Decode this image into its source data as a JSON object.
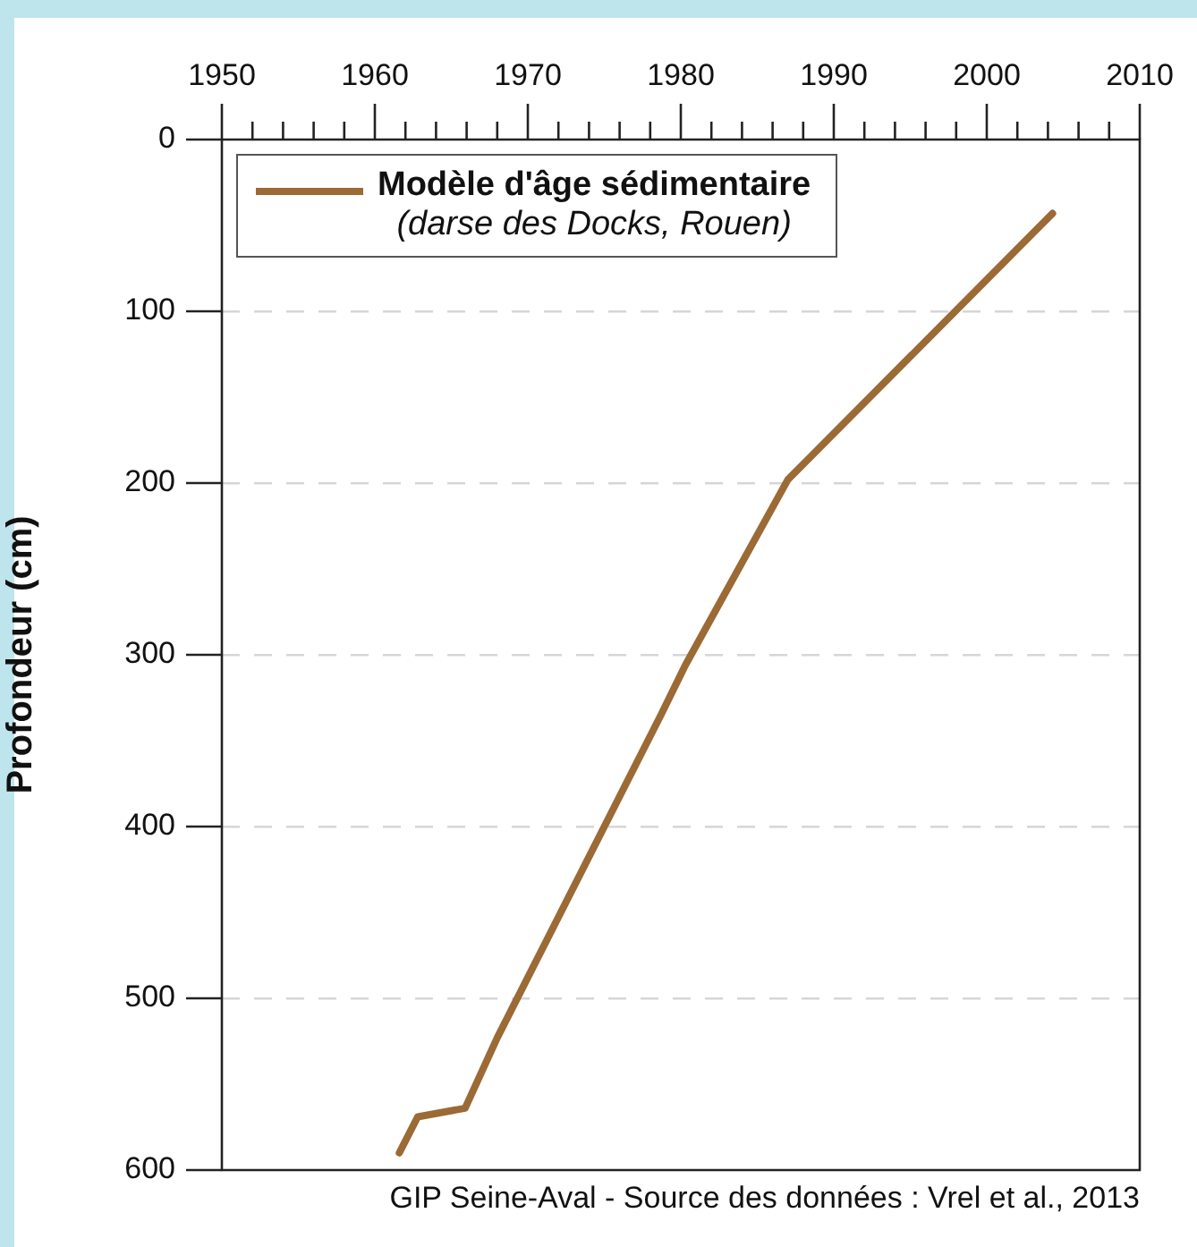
{
  "chart_data": {
    "type": "line",
    "ylabel": "Profondeur (cm)",
    "annotations": [
      "GIP Seine-Aval - Source des données : Vrel et al., 2013"
    ],
    "series": [
      {
        "name": "Modèle d'âge sédimentaire\n(darse des Docks, Rouen)",
        "color": "#9b6a35",
        "x": [
          1961.6,
          1962.8,
          1965.9,
          1968.0,
          1978.7,
          1980.3,
          1987.0,
          2004.3
        ],
        "values": [
          590,
          569,
          564,
          523,
          335,
          306,
          198,
          43
        ]
      }
    ],
    "xlim": [
      1950,
      2010
    ],
    "xticks": [
      1950,
      {
        "value": 1952,
        "label": null
      },
      {
        "value": 1954,
        "label": null
      },
      {
        "value": 1956,
        "label": null
      },
      {
        "value": 1958,
        "label": null
      },
      1960,
      {
        "value": 1962,
        "label": null
      },
      {
        "value": 1964,
        "label": null
      },
      {
        "value": 1966,
        "label": null
      },
      {
        "value": 1968,
        "label": null
      },
      1970,
      {
        "value": 1972,
        "label": null
      },
      {
        "value": 1974,
        "label": null
      },
      {
        "value": 1976,
        "label": null
      },
      {
        "value": 1978,
        "label": null
      },
      1980,
      {
        "value": 1982,
        "label": null
      },
      {
        "value": 1984,
        "label": null
      },
      {
        "value": 1986,
        "label": null
      },
      {
        "value": 1988,
        "label": null
      },
      1990,
      {
        "value": 1992,
        "label": null
      },
      {
        "value": 1994,
        "label": null
      },
      {
        "value": 1996,
        "label": null
      },
      {
        "value": 1998,
        "label": null
      },
      2000,
      {
        "value": 2002,
        "label": null
      },
      {
        "value": 2004,
        "label": null
      },
      {
        "value": 2006,
        "label": null
      },
      {
        "value": 2008,
        "label": null
      },
      2010
    ],
    "ylim": [
      600,
      0
    ],
    "yticks": [
      0,
      100,
      200,
      300,
      400,
      500,
      600
    ],
    "grid": "y",
    "legend": "top left",
    "marker": "none",
    "line_style": "solid"
  }
}
